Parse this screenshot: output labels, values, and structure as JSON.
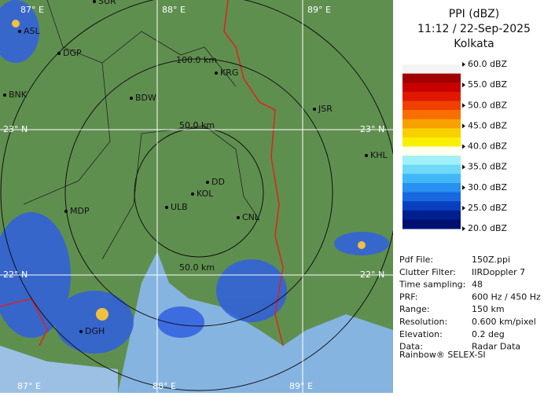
{
  "panel": {
    "title": "PPI (dBZ)",
    "time": "11:12 / 22-Sep-2025",
    "station": "Kolkata",
    "legend": [
      "60.0 dBZ",
      "55.0 dBZ",
      "50.0 dBZ",
      "45.0 dBZ",
      "40.0 dBZ",
      "35.0 dBZ",
      "30.0 dBZ",
      "25.0 dBZ",
      "20.0 dBZ"
    ],
    "scale_colors": [
      "#f4f4f4",
      "#a00000",
      "#c80000",
      "#e01800",
      "#f04000",
      "#f87000",
      "#f8a000",
      "#f8d000",
      "#f8f000",
      "#fffff0",
      "#a0f0f8",
      "#70d8f8",
      "#40b8f8",
      "#2890f0",
      "#1868e0",
      "#0840c0",
      "#002090",
      "#001070"
    ],
    "info": [
      [
        "Pdf File:",
        "150Z.ppi"
      ],
      [
        "Clutter Filter:",
        "IIRDoppler 7"
      ],
      [
        "Time sampling:",
        "48"
      ],
      [
        "PRF:",
        "600 Hz / 450 Hz"
      ],
      [
        "Range:",
        "150 km"
      ],
      [
        "Resolution:",
        "0.600 km/pixel"
      ],
      [
        "Elevation:",
        "0.2 deg"
      ],
      [
        "Data:",
        "Radar Data"
      ]
    ],
    "footer": "Rainbow® SELEX-SI"
  },
  "map": {
    "grid_labels": [
      "88° E",
      "89° E",
      "23° N",
      "23° N",
      "22° N",
      "22° N",
      "87° E",
      "88° E",
      "89° E",
      "87° E"
    ],
    "range_labels": [
      "100.0 km",
      "50.0 km",
      "50.0 km"
    ],
    "cities": [
      "SUR",
      "ASL",
      "DGP",
      "BNK",
      "BDW",
      "KRG",
      "JSR",
      "KHL",
      "DD",
      "KOL",
      "ULB",
      "CNL",
      "MDP",
      "DGH"
    ]
  }
}
